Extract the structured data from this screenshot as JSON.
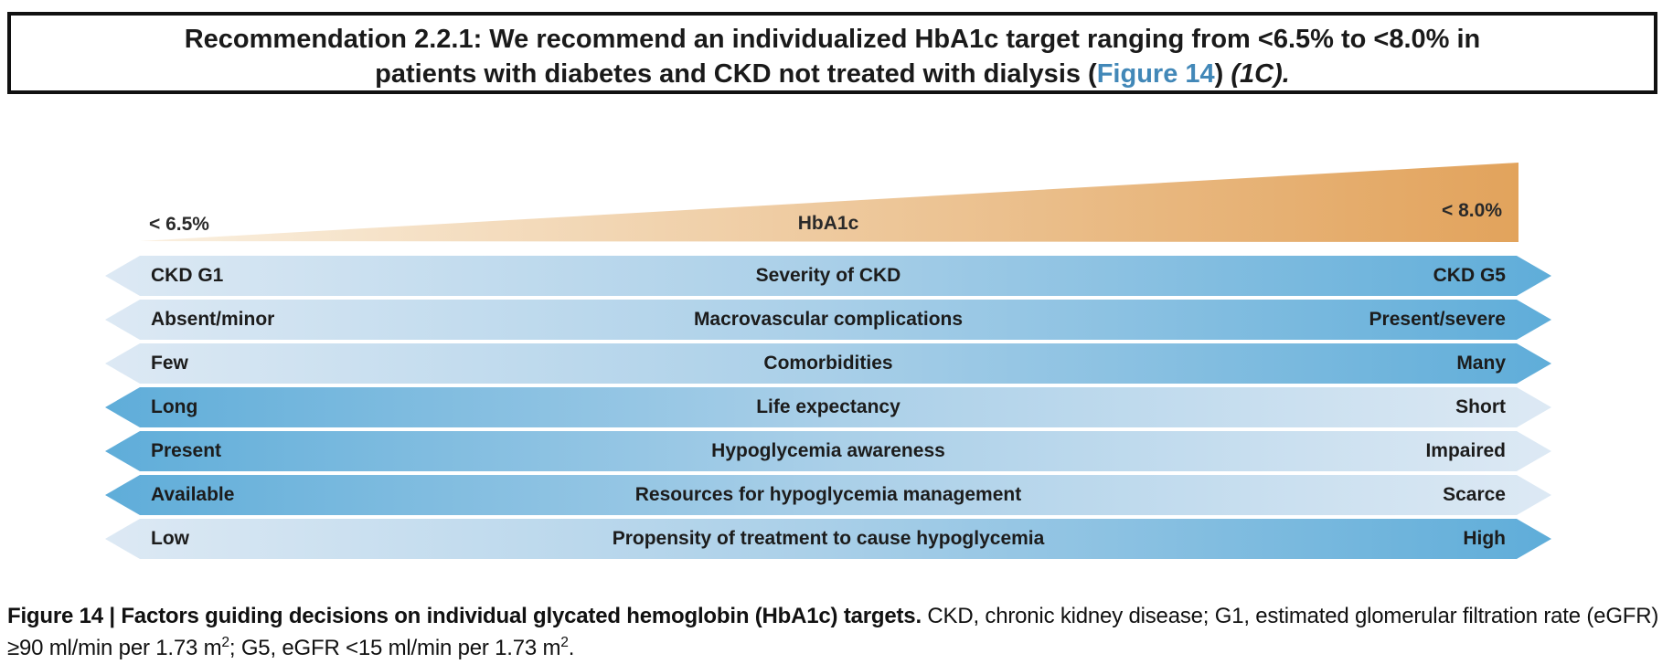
{
  "recommendation": {
    "line1": "Recommendation 2.2.1: We recommend an individualized HbA1c target ranging from <6.5% to <8.0% in",
    "line2_prefix": "patients with diabetes and CKD not treated with dialysis (",
    "figure_link": "Figure 14",
    "line2_close": ") ",
    "grade": "(1C).",
    "link_color": "#4288b8"
  },
  "figure": {
    "wedge": {
      "left_label": "< 6.5%",
      "center_label": "HbA1c",
      "right_label": "< 8.0%"
    },
    "rows": [
      {
        "left": "CKD G1",
        "center": "Severity of CKD",
        "right": "CKD G5",
        "direction": "light-to-dark"
      },
      {
        "left": "Absent/minor",
        "center": "Macrovascular complications",
        "right": "Present/severe",
        "direction": "light-to-dark"
      },
      {
        "left": "Few",
        "center": "Comorbidities",
        "right": "Many",
        "direction": "light-to-dark"
      },
      {
        "left": "Long",
        "center": "Life expectancy",
        "right": "Short",
        "direction": "dark-to-light"
      },
      {
        "left": "Present",
        "center": "Hypoglycemia awareness",
        "right": "Impaired",
        "direction": "dark-to-light"
      },
      {
        "left": "Available",
        "center": "Resources for hypoglycemia management",
        "right": "Scarce",
        "direction": "dark-to-light"
      },
      {
        "left": "Low",
        "center": "Propensity of treatment to cause hypoglycemia",
        "right": "High",
        "direction": "light-to-dark"
      }
    ],
    "colors": {
      "bar_light": "#dde9f4",
      "bar_dark": "#5fadd9",
      "wedge_light": "#faf0e0",
      "wedge_dark": "#e2a35c"
    }
  },
  "caption": {
    "bold": "Figure 14 | Factors guiding decisions on individual glycated hemoglobin (HbA1c) targets.",
    "normal_1": " CKD, chronic kidney disease; G1, estimated glomerular filtration rate (eGFR) ≥90 ml/min per 1.73 m",
    "sup_1": "2",
    "normal_2": "; G5, eGFR <15 ml/min per 1.73 m",
    "sup_2": "2",
    "normal_3": "."
  }
}
